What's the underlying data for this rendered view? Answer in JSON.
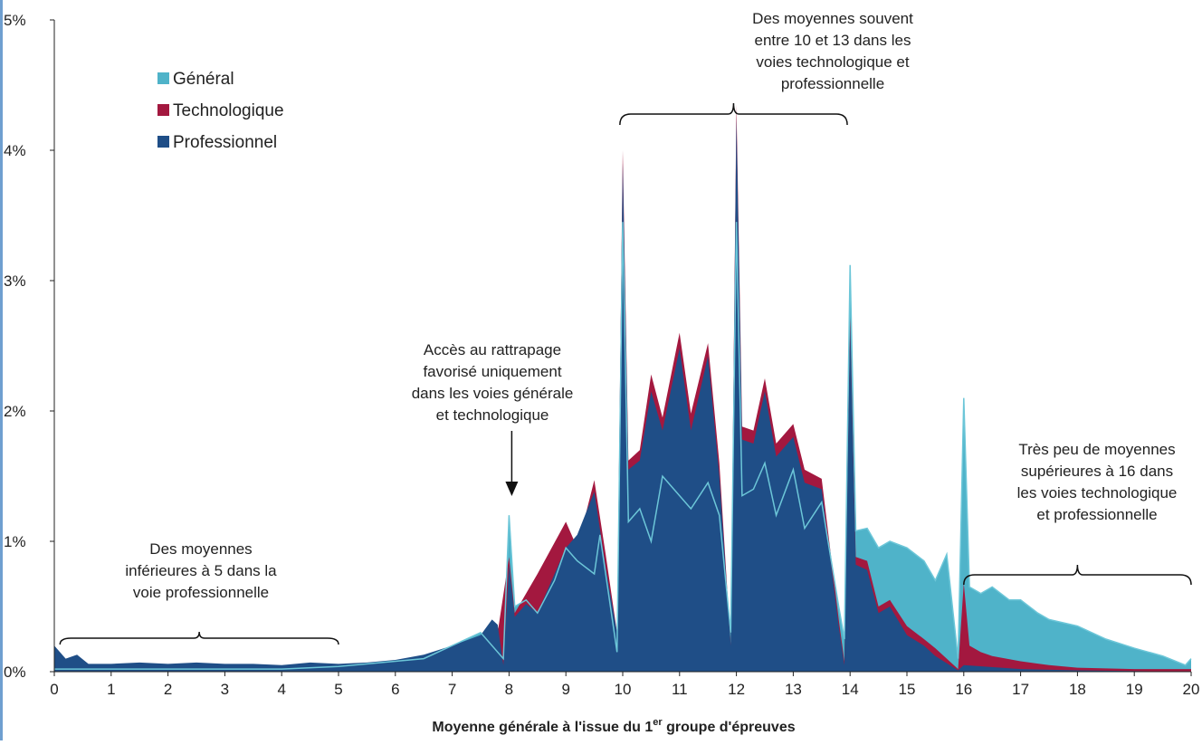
{
  "chart_data": {
    "type": "area",
    "xlabel_main": "Moyenne générale à l'issue du 1",
    "xlabel_sup": "er",
    "xlabel_end": " groupe d'épreuves",
    "ylabel": "",
    "xlim": [
      0,
      20
    ],
    "ylim": [
      0,
      5
    ],
    "x_ticks": [
      "0",
      "1",
      "2",
      "3",
      "4",
      "5",
      "6",
      "7",
      "8",
      "9",
      "10",
      "11",
      "12",
      "13",
      "14",
      "15",
      "16",
      "17",
      "18",
      "19",
      "20"
    ],
    "y_ticks": [
      "0%",
      "1%",
      "2%",
      "3%",
      "4%",
      "5%"
    ],
    "legend": {
      "placement": "top-left"
    },
    "series": [
      {
        "name": "Général",
        "color": "#4fb3c9",
        "points": [
          [
            0,
            0.02
          ],
          [
            1,
            0.02
          ],
          [
            2,
            0.02
          ],
          [
            3,
            0.02
          ],
          [
            4,
            0.02
          ],
          [
            5,
            0.04
          ],
          [
            6,
            0.08
          ],
          [
            6.5,
            0.1
          ],
          [
            7,
            0.2
          ],
          [
            7.5,
            0.3
          ],
          [
            7.9,
            0.1
          ],
          [
            8,
            1.2
          ],
          [
            8.1,
            0.5
          ],
          [
            8.3,
            0.55
          ],
          [
            8.5,
            0.45
          ],
          [
            8.8,
            0.7
          ],
          [
            9,
            0.95
          ],
          [
            9.2,
            0.85
          ],
          [
            9.5,
            0.75
          ],
          [
            9.6,
            1.05
          ],
          [
            9.8,
            0.45
          ],
          [
            9.9,
            0.15
          ],
          [
            10,
            3.45
          ],
          [
            10.1,
            1.15
          ],
          [
            10.3,
            1.25
          ],
          [
            10.5,
            1.0
          ],
          [
            10.7,
            1.5
          ],
          [
            11,
            1.35
          ],
          [
            11.2,
            1.25
          ],
          [
            11.5,
            1.45
          ],
          [
            11.7,
            1.2
          ],
          [
            11.9,
            0.3
          ],
          [
            12,
            3.45
          ],
          [
            12.1,
            1.35
          ],
          [
            12.3,
            1.4
          ],
          [
            12.5,
            1.6
          ],
          [
            12.7,
            1.2
          ],
          [
            13,
            1.55
          ],
          [
            13.2,
            1.1
          ],
          [
            13.5,
            1.3
          ],
          [
            13.8,
            0.5
          ],
          [
            13.9,
            0.25
          ],
          [
            14,
            3.12
          ],
          [
            14.1,
            1.08
          ],
          [
            14.3,
            1.1
          ],
          [
            14.5,
            0.95
          ],
          [
            14.7,
            1.0
          ],
          [
            15,
            0.95
          ],
          [
            15.3,
            0.85
          ],
          [
            15.5,
            0.7
          ],
          [
            15.7,
            0.9
          ],
          [
            15.9,
            0.1
          ],
          [
            16,
            2.1
          ],
          [
            16.1,
            0.65
          ],
          [
            16.3,
            0.6
          ],
          [
            16.5,
            0.65
          ],
          [
            16.8,
            0.55
          ],
          [
            17,
            0.55
          ],
          [
            17.3,
            0.45
          ],
          [
            17.5,
            0.4
          ],
          [
            18,
            0.35
          ],
          [
            18.5,
            0.25
          ],
          [
            19,
            0.18
          ],
          [
            19.5,
            0.12
          ],
          [
            19.9,
            0.05
          ],
          [
            20,
            0.1
          ]
        ]
      },
      {
        "name": "Technologique",
        "color": "#a3183f",
        "points": [
          [
            0,
            0.02
          ],
          [
            5,
            0.02
          ],
          [
            6,
            0.05
          ],
          [
            7,
            0.15
          ],
          [
            7.8,
            0.3
          ],
          [
            8,
            0.88
          ],
          [
            8.1,
            0.45
          ],
          [
            8.5,
            0.75
          ],
          [
            9,
            1.15
          ],
          [
            9.2,
            0.95
          ],
          [
            9.5,
            1.47
          ],
          [
            9.7,
            0.9
          ],
          [
            9.9,
            0.3
          ],
          [
            10,
            4.0
          ],
          [
            10.1,
            1.62
          ],
          [
            10.3,
            1.7
          ],
          [
            10.5,
            2.28
          ],
          [
            10.7,
            1.95
          ],
          [
            11,
            2.6
          ],
          [
            11.2,
            1.98
          ],
          [
            11.5,
            2.52
          ],
          [
            11.7,
            1.6
          ],
          [
            11.9,
            0.2
          ],
          [
            12,
            4.35
          ],
          [
            12.1,
            1.88
          ],
          [
            12.3,
            1.85
          ],
          [
            12.5,
            2.25
          ],
          [
            12.7,
            1.75
          ],
          [
            13,
            1.9
          ],
          [
            13.2,
            1.55
          ],
          [
            13.5,
            1.48
          ],
          [
            13.8,
            0.4
          ],
          [
            13.9,
            0.08
          ],
          [
            14,
            2.72
          ],
          [
            14.1,
            0.88
          ],
          [
            14.3,
            0.85
          ],
          [
            14.5,
            0.5
          ],
          [
            14.7,
            0.55
          ],
          [
            15,
            0.35
          ],
          [
            15.3,
            0.25
          ],
          [
            15.5,
            0.18
          ],
          [
            15.9,
            0.02
          ],
          [
            16,
            0.68
          ],
          [
            16.1,
            0.2
          ],
          [
            16.3,
            0.15
          ],
          [
            16.5,
            0.12
          ],
          [
            17,
            0.08
          ],
          [
            17.5,
            0.05
          ],
          [
            18,
            0.03
          ],
          [
            19,
            0.02
          ],
          [
            20,
            0.02
          ]
        ]
      },
      {
        "name": "Professionnel",
        "color": "#1f4e87",
        "points": [
          [
            0,
            0.2
          ],
          [
            0.2,
            0.1
          ],
          [
            0.4,
            0.13
          ],
          [
            0.6,
            0.06
          ],
          [
            1,
            0.06
          ],
          [
            1.5,
            0.07
          ],
          [
            2,
            0.06
          ],
          [
            2.5,
            0.07
          ],
          [
            3,
            0.06
          ],
          [
            3.5,
            0.06
          ],
          [
            4,
            0.05
          ],
          [
            4.5,
            0.07
          ],
          [
            5,
            0.06
          ],
          [
            5.5,
            0.07
          ],
          [
            6,
            0.09
          ],
          [
            6.5,
            0.13
          ],
          [
            7,
            0.2
          ],
          [
            7.5,
            0.28
          ],
          [
            7.7,
            0.4
          ],
          [
            7.8,
            0.36
          ],
          [
            7.9,
            0.05
          ],
          [
            8,
            0.82
          ],
          [
            8.1,
            0.42
          ],
          [
            8.3,
            0.52
          ],
          [
            8.5,
            0.45
          ],
          [
            8.8,
            0.75
          ],
          [
            9,
            0.95
          ],
          [
            9.2,
            1.05
          ],
          [
            9.5,
            1.38
          ],
          [
            9.7,
            0.8
          ],
          [
            9.9,
            0.3
          ],
          [
            10,
            3.9
          ],
          [
            10.1,
            1.55
          ],
          [
            10.3,
            1.62
          ],
          [
            10.5,
            2.15
          ],
          [
            10.7,
            1.85
          ],
          [
            11,
            2.48
          ],
          [
            11.2,
            1.85
          ],
          [
            11.5,
            2.42
          ],
          [
            11.7,
            1.5
          ],
          [
            11.9,
            0.2
          ],
          [
            12,
            4.25
          ],
          [
            12.1,
            1.78
          ],
          [
            12.3,
            1.75
          ],
          [
            12.5,
            2.15
          ],
          [
            12.7,
            1.65
          ],
          [
            13,
            1.8
          ],
          [
            13.2,
            1.45
          ],
          [
            13.5,
            1.4
          ],
          [
            13.8,
            0.35
          ],
          [
            13.9,
            0.05
          ],
          [
            14,
            2.65
          ],
          [
            14.1,
            0.82
          ],
          [
            14.3,
            0.78
          ],
          [
            14.5,
            0.45
          ],
          [
            14.7,
            0.5
          ],
          [
            15,
            0.28
          ],
          [
            15.3,
            0.2
          ],
          [
            15.5,
            0.12
          ],
          [
            15.9,
            0.01
          ],
          [
            16,
            0.05
          ],
          [
            17,
            0.02
          ],
          [
            18,
            0.01
          ],
          [
            20,
            0.0
          ]
        ]
      }
    ],
    "annotations": [
      {
        "lines": [
          "Des moyennes",
          "inférieures à 5 dans la",
          "voie professionnelle"
        ],
        "range": [
          0.1,
          5.0
        ]
      },
      {
        "lines": [
          "Accès au rattrapage",
          "favorisé uniquement",
          "dans les voies générale",
          "et technologique"
        ],
        "arrow_x": 8.0
      },
      {
        "lines": [
          "Des moyennes souvent",
          "entre 10 et 13 dans les",
          "voies technologique et",
          "professionnelle"
        ],
        "range": [
          9.95,
          13.95
        ]
      },
      {
        "lines": [
          "Très peu de moyennes",
          "supérieures à 16 dans",
          "les voies technologique",
          "et professionnelle"
        ],
        "range": [
          16.0,
          20.0
        ]
      }
    ]
  }
}
